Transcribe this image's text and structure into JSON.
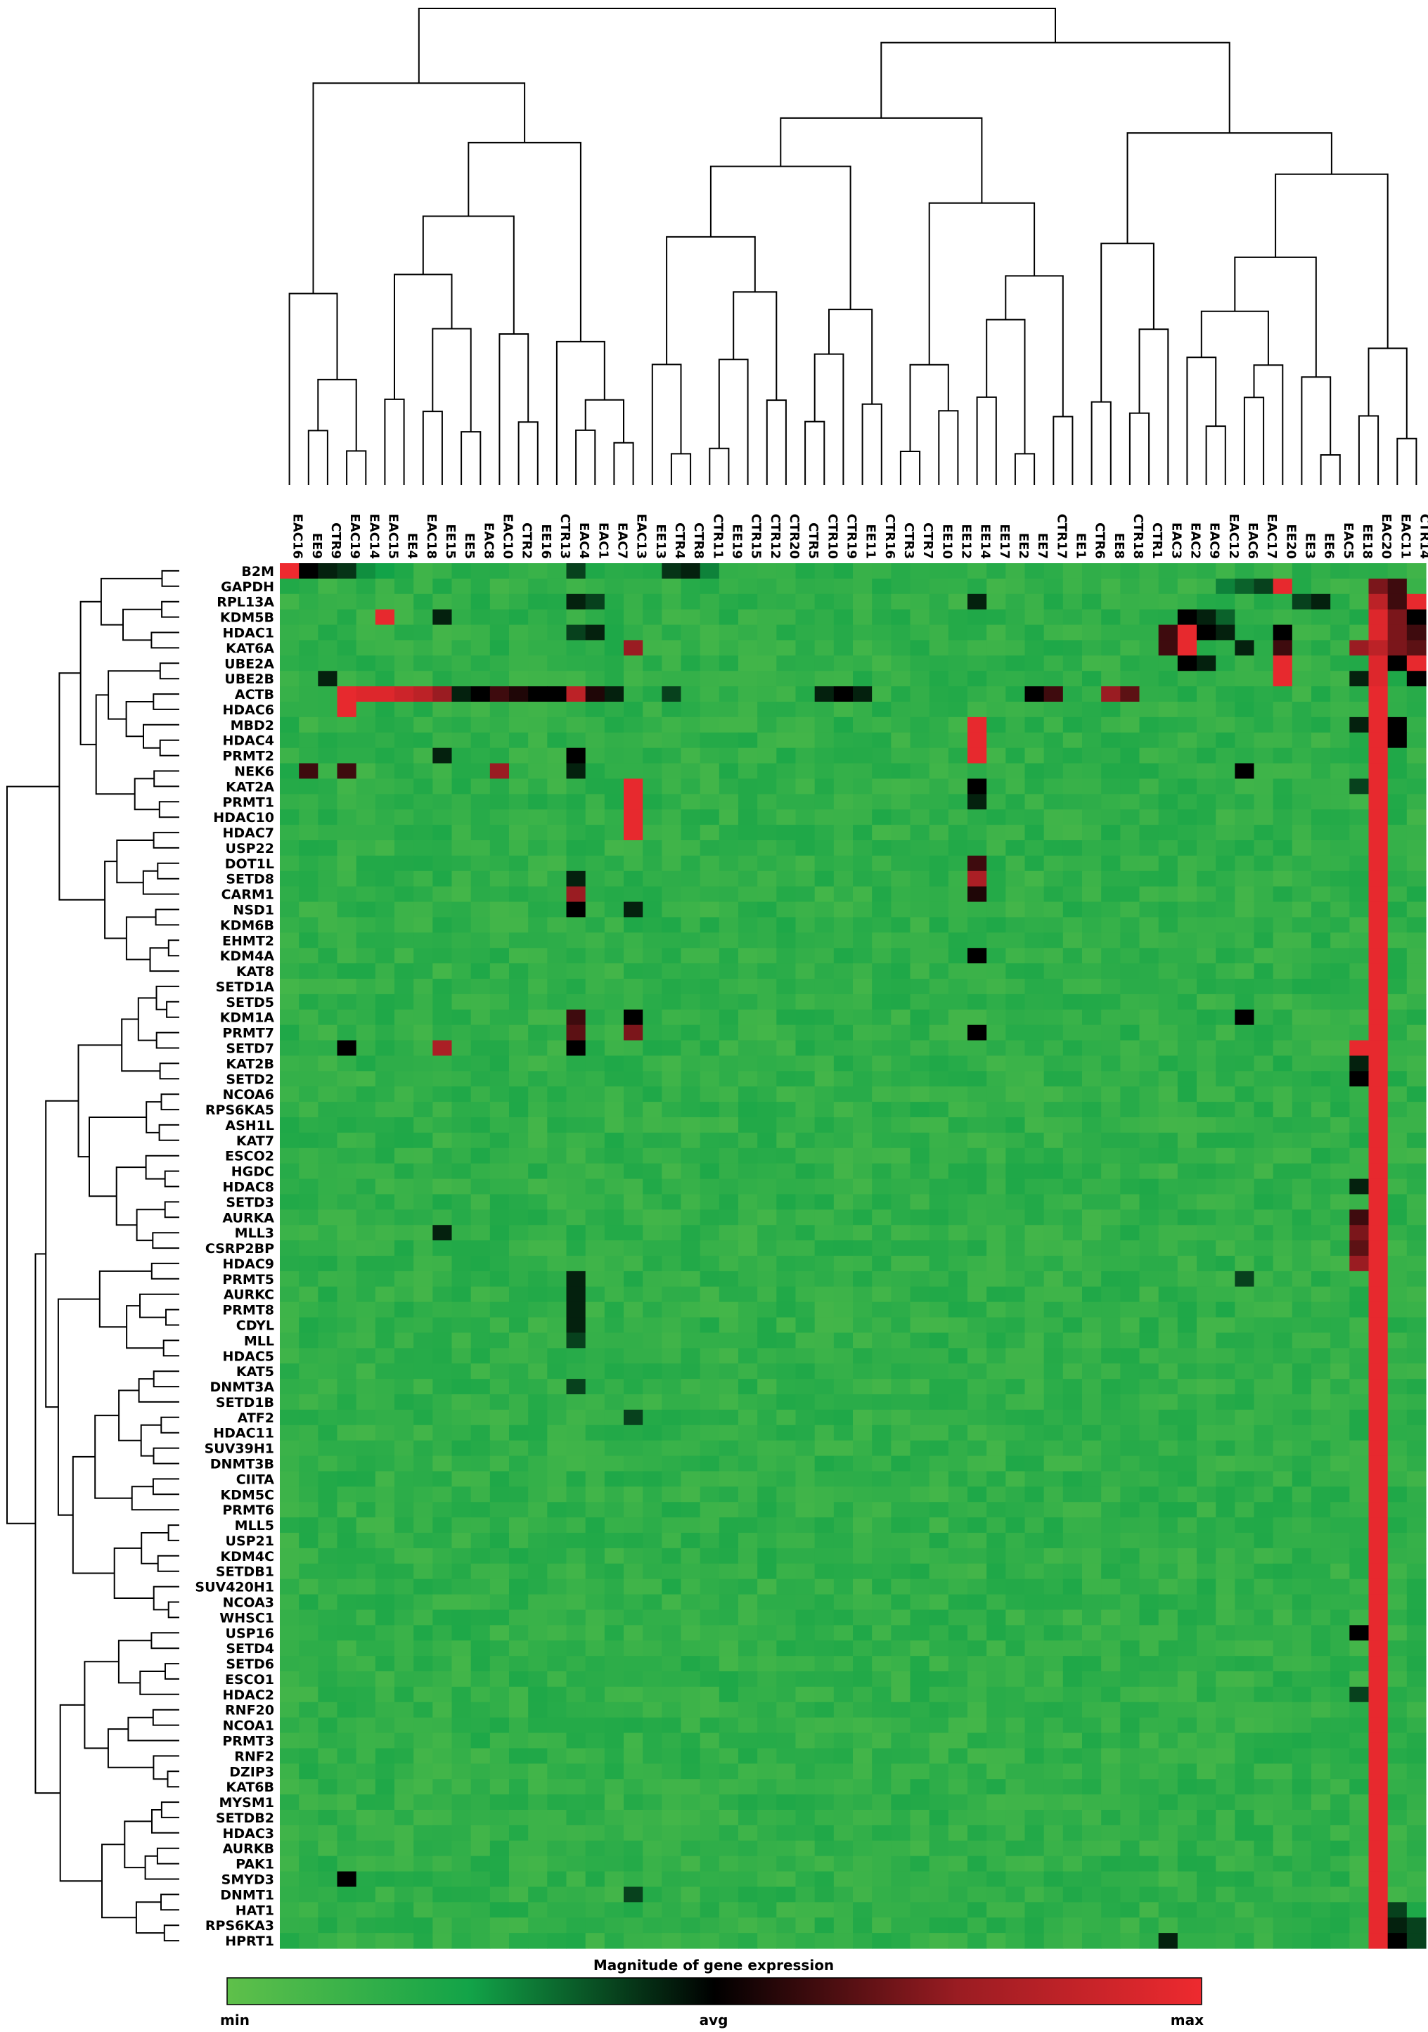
{
  "chart_data": {
    "type": "heatmap",
    "title": "",
    "xlabel": "",
    "ylabel": "",
    "columns": [
      "EAC16",
      "EE9",
      "CTR9",
      "EAC19",
      "EAC14",
      "EAC15",
      "EE4",
      "EAC18",
      "EE15",
      "EE5",
      "EAC8",
      "EAC10",
      "CTR2",
      "EE16",
      "CTR13",
      "EAC4",
      "EAC1",
      "EAC7",
      "EAC13",
      "EE13",
      "CTR4",
      "CTR8",
      "CTR11",
      "EE19",
      "CTR15",
      "CTR12",
      "CTR20",
      "CTR5",
      "CTR10",
      "CTR19",
      "EE11",
      "CTR16",
      "CTR3",
      "CTR7",
      "EE10",
      "EE12",
      "EE14",
      "EE17",
      "EE2",
      "EE7",
      "CTR17",
      "EE1",
      "CTR6",
      "EE8",
      "CTR18",
      "CTR1",
      "EAC3",
      "EAC2",
      "EAC9",
      "EAC12",
      "EAC6",
      "EAC17",
      "EE20",
      "EE3",
      "EE6",
      "EAC5",
      "EE18",
      "EAC20",
      "EAC11",
      "CTR14"
    ],
    "rows": [
      "B2M",
      "GAPDH",
      "RPL13A",
      "KDM5B",
      "HDAC1",
      "KAT6A",
      "UBE2A",
      "UBE2B",
      "ACTB",
      "HDAC6",
      "MBD2",
      "HDAC4",
      "PRMT2",
      "NEK6",
      "KAT2A",
      "PRMT1",
      "HDAC10",
      "HDAC7",
      "USP22",
      "DOT1L",
      "SETD8",
      "CARM1",
      "NSD1",
      "KDM6B",
      "EHMT2",
      "KDM4A",
      "KAT8",
      "SETD1A",
      "SETD5",
      "KDM1A",
      "PRMT7",
      "SETD7",
      "KAT2B",
      "SETD2",
      "NCOA6",
      "RPS6KA5",
      "ASH1L",
      "KAT7",
      "ESCO2",
      "HGDC",
      "HDAC8",
      "SETD3",
      "AURKA",
      "MLL3",
      "CSRP2BP",
      "HDAC9",
      "PRMT5",
      "AURKC",
      "PRMT8",
      "CDYL",
      "MLL",
      "HDAC5",
      "KAT5",
      "DNMT3A",
      "SETD1B",
      "ATF2",
      "HDAC11",
      "SUV39H1",
      "DNMT3B",
      "CIITA",
      "KDM5C",
      "PRMT6",
      "MLL5",
      "USP21",
      "KDM4C",
      "SETDB1",
      "SUV420H1",
      "NCOA3",
      "WHSC1",
      "USP16",
      "SETD4",
      "SETD6",
      "ESCO1",
      "HDAC2",
      "RNF20",
      "NCOA1",
      "PRMT3",
      "RNF2",
      "DZIP3",
      "KAT6B",
      "MYSM1",
      "SETDB2",
      "HDAC3",
      "AURKB",
      "PAK1",
      "SMYD3",
      "DNMT1",
      "HAT1",
      "RPS6KA3",
      "HPRT1"
    ],
    "scale": {
      "min": 0,
      "avg": 0.5,
      "max": 1
    },
    "default_value": 0.15,
    "cells": [
      [
        "B2M",
        "EAC16",
        1.0
      ],
      [
        "B2M",
        "EE9",
        0.5
      ],
      [
        "B2M",
        "CTR9",
        0.45
      ],
      [
        "B2M",
        "EAC19",
        0.42
      ],
      [
        "B2M",
        "EAC14",
        0.28
      ],
      [
        "B2M",
        "EAC15",
        0.25
      ],
      [
        "B2M",
        "EAC4",
        0.4
      ],
      [
        "B2M",
        "CTR4",
        0.42
      ],
      [
        "B2M",
        "CTR8",
        0.45
      ],
      [
        "B2M",
        "CTR11",
        0.3
      ],
      [
        "GAPDH",
        "EAC17",
        0.4
      ],
      [
        "GAPDH",
        "EAC6",
        0.35
      ],
      [
        "GAPDH",
        "EAC12",
        0.3
      ],
      [
        "GAPDH",
        "EE20",
        0.98
      ],
      [
        "GAPDH",
        "EAC20",
        0.7
      ],
      [
        "GAPDH",
        "EAC11",
        0.6
      ],
      [
        "RPL13A",
        "EAC4",
        0.45
      ],
      [
        "RPL13A",
        "EAC1",
        0.4
      ],
      [
        "RPL13A",
        "EE14",
        0.45
      ],
      [
        "RPL13A",
        "EE3",
        0.4
      ],
      [
        "RPL13A",
        "EE6",
        0.45
      ],
      [
        "RPL13A",
        "EAC20",
        0.85
      ],
      [
        "RPL13A",
        "EAC11",
        0.6
      ],
      [
        "RPL13A",
        "CTR14",
        0.98
      ],
      [
        "KDM5B",
        "EAC15",
        0.98
      ],
      [
        "KDM5B",
        "EE15",
        0.45
      ],
      [
        "KDM5B",
        "EAC2",
        0.5
      ],
      [
        "KDM5B",
        "EAC9",
        0.45
      ],
      [
        "KDM5B",
        "EAC12",
        0.35
      ],
      [
        "KDM5B",
        "EAC20",
        0.95
      ],
      [
        "KDM5B",
        "EAC11",
        0.7
      ],
      [
        "KDM5B",
        "CTR14",
        0.5
      ],
      [
        "HDAC1",
        "EAC4",
        0.4
      ],
      [
        "HDAC1",
        "EAC1",
        0.45
      ],
      [
        "HDAC1",
        "EAC3",
        0.6
      ],
      [
        "HDAC1",
        "EAC2",
        0.98
      ],
      [
        "HDAC1",
        "EAC9",
        0.5
      ],
      [
        "HDAC1",
        "EAC12",
        0.45
      ],
      [
        "HDAC1",
        "EE20",
        0.5
      ],
      [
        "HDAC1",
        "EAC20",
        0.95
      ],
      [
        "HDAC1",
        "EAC11",
        0.7
      ],
      [
        "HDAC1",
        "CTR14",
        0.6
      ],
      [
        "KAT6A",
        "EAC13",
        0.75
      ],
      [
        "KAT6A",
        "EAC3",
        0.6
      ],
      [
        "KAT6A",
        "EAC2",
        0.98
      ],
      [
        "KAT6A",
        "EAC6",
        0.45
      ],
      [
        "KAT6A",
        "EE20",
        0.6
      ],
      [
        "KAT6A",
        "EE18",
        0.75
      ],
      [
        "KAT6A",
        "EAC20",
        0.85
      ],
      [
        "KAT6A",
        "EAC11",
        0.7
      ],
      [
        "KAT6A",
        "CTR14",
        0.65
      ],
      [
        "UBE2A",
        "EAC2",
        0.5
      ],
      [
        "UBE2A",
        "EAC9",
        0.45
      ],
      [
        "UBE2A",
        "EE20",
        0.98
      ],
      [
        "UBE2A",
        "EAC20",
        0.95
      ],
      [
        "UBE2A",
        "EAC11",
        0.5
      ],
      [
        "UBE2A",
        "CTR14",
        0.98
      ],
      [
        "UBE2B",
        "CTR9",
        0.45
      ],
      [
        "UBE2B",
        "EE20",
        0.98
      ],
      [
        "UBE2B",
        "EE18",
        0.45
      ],
      [
        "UBE2B",
        "EAC20",
        0.95
      ],
      [
        "UBE2B",
        "CTR14",
        0.5
      ],
      [
        "ACTB",
        "EAC19",
        0.98
      ],
      [
        "ACTB",
        "EAC14",
        0.95
      ],
      [
        "ACTB",
        "EAC15",
        0.95
      ],
      [
        "ACTB",
        "EE4",
        0.9
      ],
      [
        "ACTB",
        "EAC18",
        0.85
      ],
      [
        "ACTB",
        "EE15",
        0.75
      ],
      [
        "ACTB",
        "EE5",
        0.45
      ],
      [
        "ACTB",
        "EAC8",
        0.5
      ],
      [
        "ACTB",
        "EAC10",
        0.6
      ],
      [
        "ACTB",
        "CTR2",
        0.55
      ],
      [
        "ACTB",
        "EE16",
        0.5
      ],
      [
        "ACTB",
        "CTR13",
        0.5
      ],
      [
        "ACTB",
        "EAC4",
        0.85
      ],
      [
        "ACTB",
        "EAC1",
        0.55
      ],
      [
        "ACTB",
        "EAC7",
        0.45
      ],
      [
        "ACTB",
        "CTR4",
        0.4
      ],
      [
        "ACTB",
        "CTR10",
        0.45
      ],
      [
        "ACTB",
        "CTR19",
        0.5
      ],
      [
        "ACTB",
        "EE11",
        0.45
      ],
      [
        "ACTB",
        "EE7",
        0.5
      ],
      [
        "ACTB",
        "CTR17",
        0.6
      ],
      [
        "ACTB",
        "EE8",
        0.75
      ],
      [
        "ACTB",
        "CTR18",
        0.65
      ],
      [
        "ACTB",
        "EAC20",
        0.98
      ],
      [
        "HDAC6",
        "EAC19",
        0.98
      ],
      [
        "HDAC6",
        "EAC20",
        0.98
      ],
      [
        "MBD2",
        "EAC20",
        0.98
      ],
      [
        "MBD2",
        "EE14",
        0.98
      ],
      [
        "MBD2",
        "EAC11",
        0.5
      ],
      [
        "MBD2",
        "EE18",
        0.45
      ],
      [
        "HDAC4",
        "EE14",
        0.98
      ],
      [
        "HDAC4",
        "EAC20",
        0.98
      ],
      [
        "HDAC4",
        "EAC11",
        0.5
      ],
      [
        "PRMT2",
        "EE14",
        0.98
      ],
      [
        "PRMT2",
        "EAC4",
        0.5
      ],
      [
        "PRMT2",
        "EE15",
        0.45
      ],
      [
        "PRMT2",
        "EAC20",
        0.98
      ],
      [
        "NEK6",
        "EE9",
        0.6
      ],
      [
        "NEK6",
        "EAC19",
        0.6
      ],
      [
        "NEK6",
        "EAC10",
        0.75
      ],
      [
        "NEK6",
        "EAC4",
        0.45
      ],
      [
        "NEK6",
        "EAC6",
        0.5
      ],
      [
        "NEK6",
        "EAC20",
        0.98
      ],
      [
        "KAT2A",
        "EAC13",
        0.98
      ],
      [
        "KAT2A",
        "EE14",
        0.5
      ],
      [
        "KAT2A",
        "EAC20",
        0.98
      ],
      [
        "KAT2A",
        "EE18",
        0.4
      ],
      [
        "PRMT1",
        "EAC13",
        0.98
      ],
      [
        "PRMT1",
        "EE14",
        0.45
      ],
      [
        "PRMT1",
        "EAC20",
        0.98
      ],
      [
        "HDAC10",
        "EAC13",
        0.98
      ],
      [
        "HDAC10",
        "EAC20",
        0.98
      ],
      [
        "HDAC7",
        "EAC13",
        0.98
      ],
      [
        "HDAC7",
        "EAC20",
        0.98
      ],
      [
        "USP22",
        "EAC20",
        0.98
      ],
      [
        "DOT1L",
        "EE14",
        0.6
      ],
      [
        "DOT1L",
        "EAC20",
        0.98
      ],
      [
        "SETD8",
        "EE14",
        0.8
      ],
      [
        "SETD8",
        "EAC4",
        0.45
      ],
      [
        "SETD8",
        "EAC20",
        0.98
      ],
      [
        "CARM1",
        "EAC4",
        0.75
      ],
      [
        "CARM1",
        "EE14",
        0.55
      ],
      [
        "CARM1",
        "EAC20",
        0.98
      ],
      [
        "NSD1",
        "EAC4",
        0.5
      ],
      [
        "NSD1",
        "EAC13",
        0.45
      ],
      [
        "NSD1",
        "EAC20",
        0.98
      ],
      [
        "KDM6B",
        "EAC20",
        0.98
      ],
      [
        "EHMT2",
        "EAC20",
        0.98
      ],
      [
        "KDM4A",
        "EE14",
        0.5
      ],
      [
        "KDM4A",
        "EAC20",
        0.98
      ],
      [
        "KAT8",
        "EAC20",
        0.98
      ],
      [
        "SETD1A",
        "EAC20",
        0.98
      ],
      [
        "SETD5",
        "EAC20",
        0.98
      ],
      [
        "KDM1A",
        "EAC4",
        0.6
      ],
      [
        "KDM1A",
        "EAC13",
        0.5
      ],
      [
        "KDM1A",
        "EAC6",
        0.5
      ],
      [
        "KDM1A",
        "EAC20",
        0.98
      ],
      [
        "PRMT7",
        "EAC4",
        0.65
      ],
      [
        "PRMT7",
        "EAC13",
        0.7
      ],
      [
        "PRMT7",
        "EE14",
        0.5
      ],
      [
        "PRMT7",
        "EAC20",
        0.98
      ],
      [
        "SETD7",
        "EAC19",
        0.5
      ],
      [
        "SETD7",
        "EE15",
        0.8
      ],
      [
        "SETD7",
        "EAC4",
        0.5
      ],
      [
        "SETD7",
        "EE18",
        0.98
      ],
      [
        "SETD7",
        "EAC20",
        0.98
      ],
      [
        "KAT2B",
        "EAC20",
        0.98
      ],
      [
        "KAT2B",
        "EE18",
        0.45
      ],
      [
        "SETD2",
        "EE18",
        0.5
      ],
      [
        "SETD2",
        "EAC20",
        0.98
      ],
      [
        "NCOA6",
        "EAC20",
        0.98
      ],
      [
        "RPS6KA5",
        "EAC20",
        0.98
      ],
      [
        "ASH1L",
        "EAC20",
        0.98
      ],
      [
        "KAT7",
        "EAC20",
        0.98
      ],
      [
        "ESCO2",
        "EAC20",
        0.98
      ],
      [
        "HGDC",
        "EAC20",
        0.98
      ],
      [
        "HDAC8",
        "EAC20",
        0.98
      ],
      [
        "HDAC8",
        "EE18",
        0.45
      ],
      [
        "SETD3",
        "EAC20",
        0.98
      ],
      [
        "AURKA",
        "EAC20",
        0.98
      ],
      [
        "AURKA",
        "EE18",
        0.6
      ],
      [
        "MLL3",
        "EE15",
        0.45
      ],
      [
        "MLL3",
        "EAC20",
        0.98
      ],
      [
        "MLL3",
        "EE18",
        0.7
      ],
      [
        "CSRP2BP",
        "EAC20",
        0.98
      ],
      [
        "CSRP2BP",
        "EE18",
        0.65
      ],
      [
        "HDAC9",
        "EAC20",
        0.98
      ],
      [
        "HDAC9",
        "EE18",
        0.75
      ],
      [
        "PRMT5",
        "EAC4",
        0.45
      ],
      [
        "PRMT5",
        "EAC6",
        0.4
      ],
      [
        "PRMT5",
        "EAC20",
        0.98
      ],
      [
        "AURKC",
        "EAC4",
        0.45
      ],
      [
        "AURKC",
        "EAC20",
        0.98
      ],
      [
        "PRMT8",
        "EAC4",
        0.45
      ],
      [
        "PRMT8",
        "EAC20",
        0.98
      ],
      [
        "CDYL",
        "EAC4",
        0.45
      ],
      [
        "CDYL",
        "EAC20",
        0.98
      ],
      [
        "MLL",
        "EAC4",
        0.4
      ],
      [
        "MLL",
        "EAC20",
        0.98
      ],
      [
        "HDAC5",
        "EAC20",
        0.98
      ],
      [
        "KAT5",
        "EAC20",
        0.98
      ],
      [
        "DNMT3A",
        "EAC4",
        0.4
      ],
      [
        "DNMT3A",
        "EAC20",
        0.98
      ],
      [
        "SETD1B",
        "EAC20",
        0.98
      ],
      [
        "ATF2",
        "EAC13",
        0.4
      ],
      [
        "ATF2",
        "EAC20",
        0.98
      ],
      [
        "HDAC11",
        "EAC20",
        0.98
      ],
      [
        "SUV39H1",
        "EAC20",
        0.98
      ],
      [
        "DNMT3B",
        "EAC20",
        0.98
      ],
      [
        "CIITA",
        "EAC20",
        0.98
      ],
      [
        "KDM5C",
        "EAC20",
        0.98
      ],
      [
        "PRMT6",
        "EAC20",
        0.98
      ],
      [
        "MLL5",
        "EAC20",
        0.98
      ],
      [
        "USP21",
        "EAC20",
        0.98
      ],
      [
        "KDM4C",
        "EAC20",
        0.98
      ],
      [
        "SETDB1",
        "EAC20",
        0.98
      ],
      [
        "SUV420H1",
        "EAC20",
        0.98
      ],
      [
        "NCOA3",
        "EAC20",
        0.98
      ],
      [
        "WHSC1",
        "EAC20",
        0.98
      ],
      [
        "USP16",
        "EE18",
        0.5
      ],
      [
        "USP16",
        "EAC20",
        0.98
      ],
      [
        "SETD4",
        "EAC20",
        0.98
      ],
      [
        "SETD6",
        "EAC20",
        0.98
      ],
      [
        "ESCO1",
        "EAC20",
        0.98
      ],
      [
        "HDAC2",
        "EE18",
        0.4
      ],
      [
        "HDAC2",
        "EAC20",
        0.98
      ],
      [
        "RNF20",
        "EAC20",
        0.98
      ],
      [
        "NCOA1",
        "EAC20",
        0.98
      ],
      [
        "PRMT3",
        "EAC20",
        0.98
      ],
      [
        "RNF2",
        "EAC20",
        0.98
      ],
      [
        "DZIP3",
        "EAC20",
        0.98
      ],
      [
        "KAT6B",
        "EAC20",
        0.98
      ],
      [
        "MYSM1",
        "EAC20",
        0.98
      ],
      [
        "SETDB2",
        "EAC20",
        0.98
      ],
      [
        "HDAC3",
        "EAC20",
        0.98
      ],
      [
        "AURKB",
        "EAC20",
        0.98
      ],
      [
        "PAK1",
        "EAC20",
        0.98
      ],
      [
        "SMYD3",
        "EAC19",
        0.5
      ],
      [
        "SMYD3",
        "EAC20",
        0.98
      ],
      [
        "DNMT1",
        "EAC20",
        0.98
      ],
      [
        "DNMT1",
        "EAC13",
        0.4
      ],
      [
        "HAT1",
        "EAC20",
        0.98
      ],
      [
        "HAT1",
        "EAC11",
        0.4
      ],
      [
        "RPS6KA3",
        "EAC20",
        0.98
      ],
      [
        "RPS6KA3",
        "EAC11",
        0.45
      ],
      [
        "RPS6KA3",
        "CTR14",
        0.4
      ],
      [
        "HPRT1",
        "EAC3",
        0.45
      ],
      [
        "HPRT1",
        "EAC20",
        0.98
      ],
      [
        "HPRT1",
        "EAC11",
        0.5
      ],
      [
        "HPRT1",
        "CTR14",
        0.4
      ]
    ],
    "legend": {
      "title": "Magnitude of gene expression",
      "min_label": "min",
      "avg_label": "avg",
      "max_label": "max",
      "colors": [
        "#5fc04a",
        "#12a348",
        "#000000",
        "#9a1c22",
        "#ee2a2f"
      ]
    }
  }
}
